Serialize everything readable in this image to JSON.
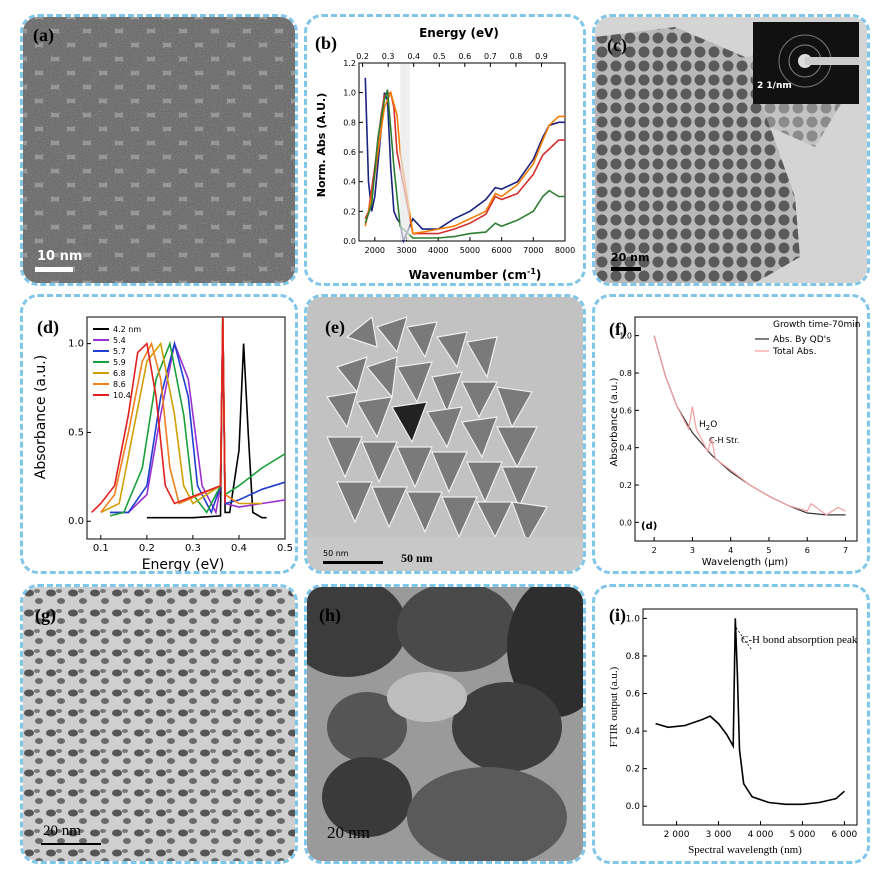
{
  "panels": {
    "a": {
      "label": "(a)",
      "scale_text": "10 nm"
    },
    "b": {
      "label": "(b)",
      "top_axis_title": "Energy (eV)",
      "top_ticks": [
        "0.2",
        "0.3",
        "0.4",
        "0.5",
        "0.6",
        "0.7",
        "0.8",
        "0.9"
      ],
      "ylabel": "Norm. Abs (A.U.)",
      "yticks": [
        "0.0",
        "0.2",
        "0.4",
        "0.6",
        "0.8",
        "1.0",
        "1.2"
      ],
      "xticks": [
        "2000",
        "3000",
        "4000",
        "5000",
        "6000",
        "7000",
        "8000"
      ],
      "xlabel": "Wavenumber (cm",
      "xlabel_sup": "-1",
      "xlabel_end": ")"
    },
    "c": {
      "label": "(c)",
      "scale_text": "20 nm",
      "inset_scale": "2 1/nm"
    },
    "d": {
      "label": "(d)",
      "ylabel": "Absorbance (a.u.)",
      "xlabel": "Energy (eV)",
      "yticks": [
        "0.0",
        "0.5",
        "1.0"
      ],
      "xticks": [
        "0.1",
        "0.2",
        "0.3",
        "0.4",
        "0.5"
      ],
      "legend": [
        {
          "name": "4.2 nm",
          "color": "#000000"
        },
        {
          "name": "5.4",
          "color": "#9b30d0"
        },
        {
          "name": "5.7",
          "color": "#1f3fd0"
        },
        {
          "name": "5.9",
          "color": "#1aa03a"
        },
        {
          "name": "6.8",
          "color": "#d0a000"
        },
        {
          "name": "8.6",
          "color": "#f08020"
        },
        {
          "name": "10.4",
          "color": "#e02020"
        }
      ]
    },
    "e": {
      "label": "(e)",
      "scale_text": "50 nm",
      "scale_small": "50 nm"
    },
    "f": {
      "label": "(f)",
      "ylabel": "Absorbance (a.u.)",
      "xlabel": "Wavelength (μm)",
      "yticks": [
        "0.0",
        "0.2",
        "0.4",
        "0.6",
        "0.8",
        "1.0"
      ],
      "xticks": [
        "2",
        "3",
        "4",
        "5",
        "6",
        "7"
      ],
      "legend_title": "Growth time-70min",
      "legend": [
        "Abs. By QD's",
        "Total Abs."
      ],
      "ann_h2o": "H",
      "ann_h2o_sub": "2",
      "ann_h2o_end": "O",
      "ann_ch": "C-H Str.",
      "inner_label": "(d)"
    },
    "g": {
      "label": "(g)",
      "scale_text": "20 nm"
    },
    "h": {
      "label": "(h)",
      "scale_text": "20 nm"
    },
    "i": {
      "label": "(i)",
      "ylabel": "FTIR output (a.u.)",
      "xlabel": "Spectral wavelength (nm)",
      "yticks": [
        "0.0",
        "0.2",
        "0.4",
        "0.6",
        "0.8",
        "1.0"
      ],
      "xticks": [
        "2 000",
        "3 000",
        "4 000",
        "5 000",
        "6 000"
      ],
      "annotation": "C-H bond absorption peak"
    }
  },
  "chart_data": [
    {
      "type": "line",
      "panel": "b",
      "xlabel": "Wavenumber (cm-1)",
      "ylabel": "Norm. Abs (A.U.)",
      "top_axis": "Energy (eV)",
      "xlim": [
        1500,
        8000
      ],
      "ylim": [
        0,
        1.2
      ],
      "series": [
        {
          "color": "#1a237e",
          "x": [
            1700,
            1800,
            1900,
            2000,
            2200,
            2300,
            2400,
            2500,
            2600,
            2700,
            2800,
            2900,
            3200,
            3500,
            4000,
            4500,
            5000,
            5500,
            5800,
            6000,
            6500,
            7000,
            7300,
            7500,
            7800,
            8000
          ],
          "y": [
            1.1,
            0.4,
            0.2,
            0.3,
            0.75,
            1.0,
            0.95,
            0.5,
            0.2,
            0.15,
            0.12,
            0.0,
            0.15,
            0.08,
            0.08,
            0.15,
            0.2,
            0.28,
            0.36,
            0.35,
            0.4,
            0.55,
            0.7,
            0.78,
            0.8,
            0.8
          ]
        },
        {
          "color": "#d32f2f",
          "x": [
            1700,
            1800,
            2000,
            2200,
            2300,
            2500,
            2600,
            2700,
            3200,
            3500,
            4000,
            4500,
            5000,
            5500,
            5800,
            6000,
            6500,
            7000,
            7300,
            7500,
            7800,
            8000
          ],
          "y": [
            0.15,
            0.2,
            0.5,
            0.85,
            0.98,
            1.0,
            0.9,
            0.6,
            0.05,
            0.05,
            0.05,
            0.08,
            0.12,
            0.18,
            0.3,
            0.28,
            0.32,
            0.45,
            0.58,
            0.62,
            0.68,
            0.68
          ]
        },
        {
          "color": "#f57c00",
          "x": [
            1700,
            1900,
            2100,
            2300,
            2500,
            2700,
            2800,
            3200,
            3500,
            4000,
            4500,
            5000,
            5500,
            5800,
            6000,
            6500,
            7000,
            7300,
            7500,
            7800,
            8000
          ],
          "y": [
            0.1,
            0.3,
            0.6,
            0.9,
            1.0,
            0.85,
            0.6,
            0.05,
            0.06,
            0.08,
            0.1,
            0.15,
            0.2,
            0.32,
            0.3,
            0.38,
            0.52,
            0.68,
            0.78,
            0.84,
            0.84
          ]
        },
        {
          "color": "#2e7d32",
          "x": [
            1700,
            1900,
            2100,
            2300,
            2400,
            2600,
            2800,
            3200,
            3500,
            4000,
            4500,
            5000,
            5500,
            5800,
            6000,
            6500,
            7000,
            7300,
            7500,
            7800,
            8000
          ],
          "y": [
            0.12,
            0.25,
            0.7,
            0.95,
            1.02,
            0.5,
            0.1,
            0.02,
            0.02,
            0.02,
            0.03,
            0.05,
            0.06,
            0.12,
            0.1,
            0.14,
            0.2,
            0.3,
            0.34,
            0.3,
            0.3
          ]
        }
      ]
    },
    {
      "type": "line",
      "panel": "d",
      "xlabel": "Energy (eV)",
      "ylabel": "Absorbance (a.u.)",
      "xlim": [
        0.07,
        0.5
      ],
      "ylim": [
        -0.1,
        1.15
      ],
      "series": [
        {
          "name": "4.2 nm",
          "color": "#000000",
          "x": [
            0.2,
            0.3,
            0.36,
            0.365,
            0.37,
            0.38,
            0.4,
            0.41,
            0.42,
            0.43,
            0.45,
            0.46
          ],
          "y": [
            0.02,
            0.02,
            0.03,
            1.2,
            0.05,
            0.05,
            0.4,
            1.0,
            0.5,
            0.05,
            0.02,
            0.02
          ]
        },
        {
          "name": "5.4",
          "color": "#9b30d0",
          "x": [
            0.12,
            0.16,
            0.2,
            0.23,
            0.26,
            0.29,
            0.32,
            0.35,
            0.36,
            0.365,
            0.37,
            0.4,
            0.45,
            0.5
          ],
          "y": [
            0.05,
            0.05,
            0.15,
            0.6,
            1.0,
            0.8,
            0.2,
            0.05,
            0.2,
            1.2,
            0.1,
            0.08,
            0.1,
            0.12
          ]
        },
        {
          "name": "5.7",
          "color": "#1f3fd0",
          "x": [
            0.12,
            0.16,
            0.2,
            0.23,
            0.26,
            0.29,
            0.31,
            0.34,
            0.36,
            0.365,
            0.37,
            0.4,
            0.45,
            0.5
          ],
          "y": [
            0.05,
            0.05,
            0.2,
            0.7,
            1.0,
            0.7,
            0.2,
            0.05,
            0.2,
            1.2,
            0.1,
            0.12,
            0.18,
            0.22
          ]
        },
        {
          "name": "5.9",
          "color": "#1aa03a",
          "x": [
            0.12,
            0.15,
            0.19,
            0.22,
            0.25,
            0.28,
            0.3,
            0.33,
            0.36,
            0.365,
            0.37,
            0.4,
            0.45,
            0.5
          ],
          "y": [
            0.03,
            0.05,
            0.3,
            0.8,
            1.0,
            0.6,
            0.15,
            0.05,
            0.2,
            1.2,
            0.15,
            0.2,
            0.3,
            0.38
          ]
        },
        {
          "name": "6.8",
          "color": "#d0a000",
          "x": [
            0.1,
            0.14,
            0.17,
            0.2,
            0.23,
            0.26,
            0.28,
            0.3,
            0.36,
            0.365,
            0.37,
            0.4,
            0.45
          ],
          "y": [
            0.05,
            0.1,
            0.5,
            0.9,
            1.0,
            0.6,
            0.2,
            0.1,
            0.2,
            1.2,
            0.15,
            0.1,
            0.1
          ]
        },
        {
          "name": "8.6",
          "color": "#f08020",
          "x": [
            0.1,
            0.13,
            0.16,
            0.19,
            0.21,
            0.23,
            0.25,
            0.27,
            0.36,
            0.365,
            0.37,
            0.4
          ],
          "y": [
            0.05,
            0.15,
            0.5,
            0.9,
            1.0,
            0.8,
            0.3,
            0.1,
            0.2,
            1.2,
            0.15,
            0.1
          ]
        },
        {
          "name": "10.4",
          "color": "#e02020",
          "x": [
            0.08,
            0.1,
            0.13,
            0.16,
            0.18,
            0.2,
            0.22,
            0.24,
            0.26,
            0.36,
            0.365,
            0.37
          ],
          "y": [
            0.05,
            0.1,
            0.2,
            0.6,
            0.95,
            1.0,
            0.7,
            0.2,
            0.1,
            0.2,
            1.2,
            0.1
          ]
        }
      ]
    },
    {
      "type": "line",
      "panel": "f",
      "xlabel": "Wavelength (μm)",
      "ylabel": "Absorbance (a.u.)",
      "xlim": [
        1.5,
        7.3
      ],
      "ylim": [
        -0.1,
        1.1
      ],
      "series": [
        {
          "name": "Abs. By QD's",
          "color": "#333333",
          "x": [
            2,
            2.3,
            2.6,
            3,
            3.5,
            4,
            4.5,
            5,
            5.5,
            6,
            6.5,
            7
          ],
          "y": [
            1.0,
            0.78,
            0.62,
            0.48,
            0.36,
            0.27,
            0.2,
            0.14,
            0.09,
            0.05,
            0.04,
            0.04
          ]
        },
        {
          "name": "Total Abs.",
          "color": "#f4a0a0",
          "x": [
            2,
            2.3,
            2.6,
            2.9,
            3.0,
            3.1,
            3.4,
            3.5,
            3.6,
            4,
            4.5,
            5,
            5.5,
            6,
            6.1,
            6.5,
            6.8,
            7
          ],
          "y": [
            1.0,
            0.78,
            0.62,
            0.5,
            0.62,
            0.5,
            0.38,
            0.45,
            0.34,
            0.28,
            0.2,
            0.14,
            0.09,
            0.06,
            0.1,
            0.04,
            0.08,
            0.06
          ]
        }
      ]
    },
    {
      "type": "line",
      "panel": "i",
      "xlabel": "Spectral wavelength (nm)",
      "ylabel": "FTIR output (a.u.)",
      "xlim": [
        1200,
        6300
      ],
      "ylim": [
        -0.1,
        1.05
      ],
      "series": [
        {
          "name": "FTIR",
          "color": "#000000",
          "x": [
            1500,
            1800,
            2200,
            2600,
            2800,
            3000,
            3200,
            3350,
            3400,
            3450,
            3500,
            3600,
            3800,
            4200,
            4600,
            5000,
            5400,
            5800,
            6000
          ],
          "y": [
            0.44,
            0.42,
            0.43,
            0.46,
            0.48,
            0.44,
            0.38,
            0.32,
            1.0,
            0.7,
            0.3,
            0.12,
            0.05,
            0.02,
            0.01,
            0.01,
            0.02,
            0.04,
            0.08
          ]
        }
      ]
    }
  ]
}
